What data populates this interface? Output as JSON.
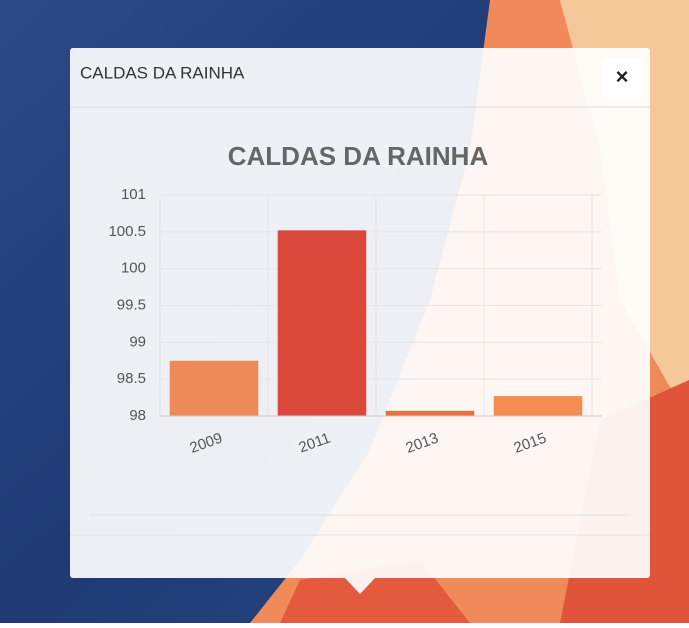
{
  "popup": {
    "title": "CALDAS DA RAINHA",
    "close": "×"
  },
  "chart_data": {
    "type": "bar",
    "title": "CALDAS DA RAINHA",
    "categories": [
      "2009",
      "2011",
      "2013",
      "2015"
    ],
    "values": [
      98.75,
      100.52,
      98.07,
      98.27
    ],
    "colors": [
      "#ee8a57",
      "#d9483b",
      "#e9703f",
      "#f58d52"
    ],
    "ylim": [
      98,
      101
    ],
    "yticks": [
      98,
      98.5,
      99,
      99.5,
      100,
      100.5,
      101
    ],
    "grid": true
  }
}
